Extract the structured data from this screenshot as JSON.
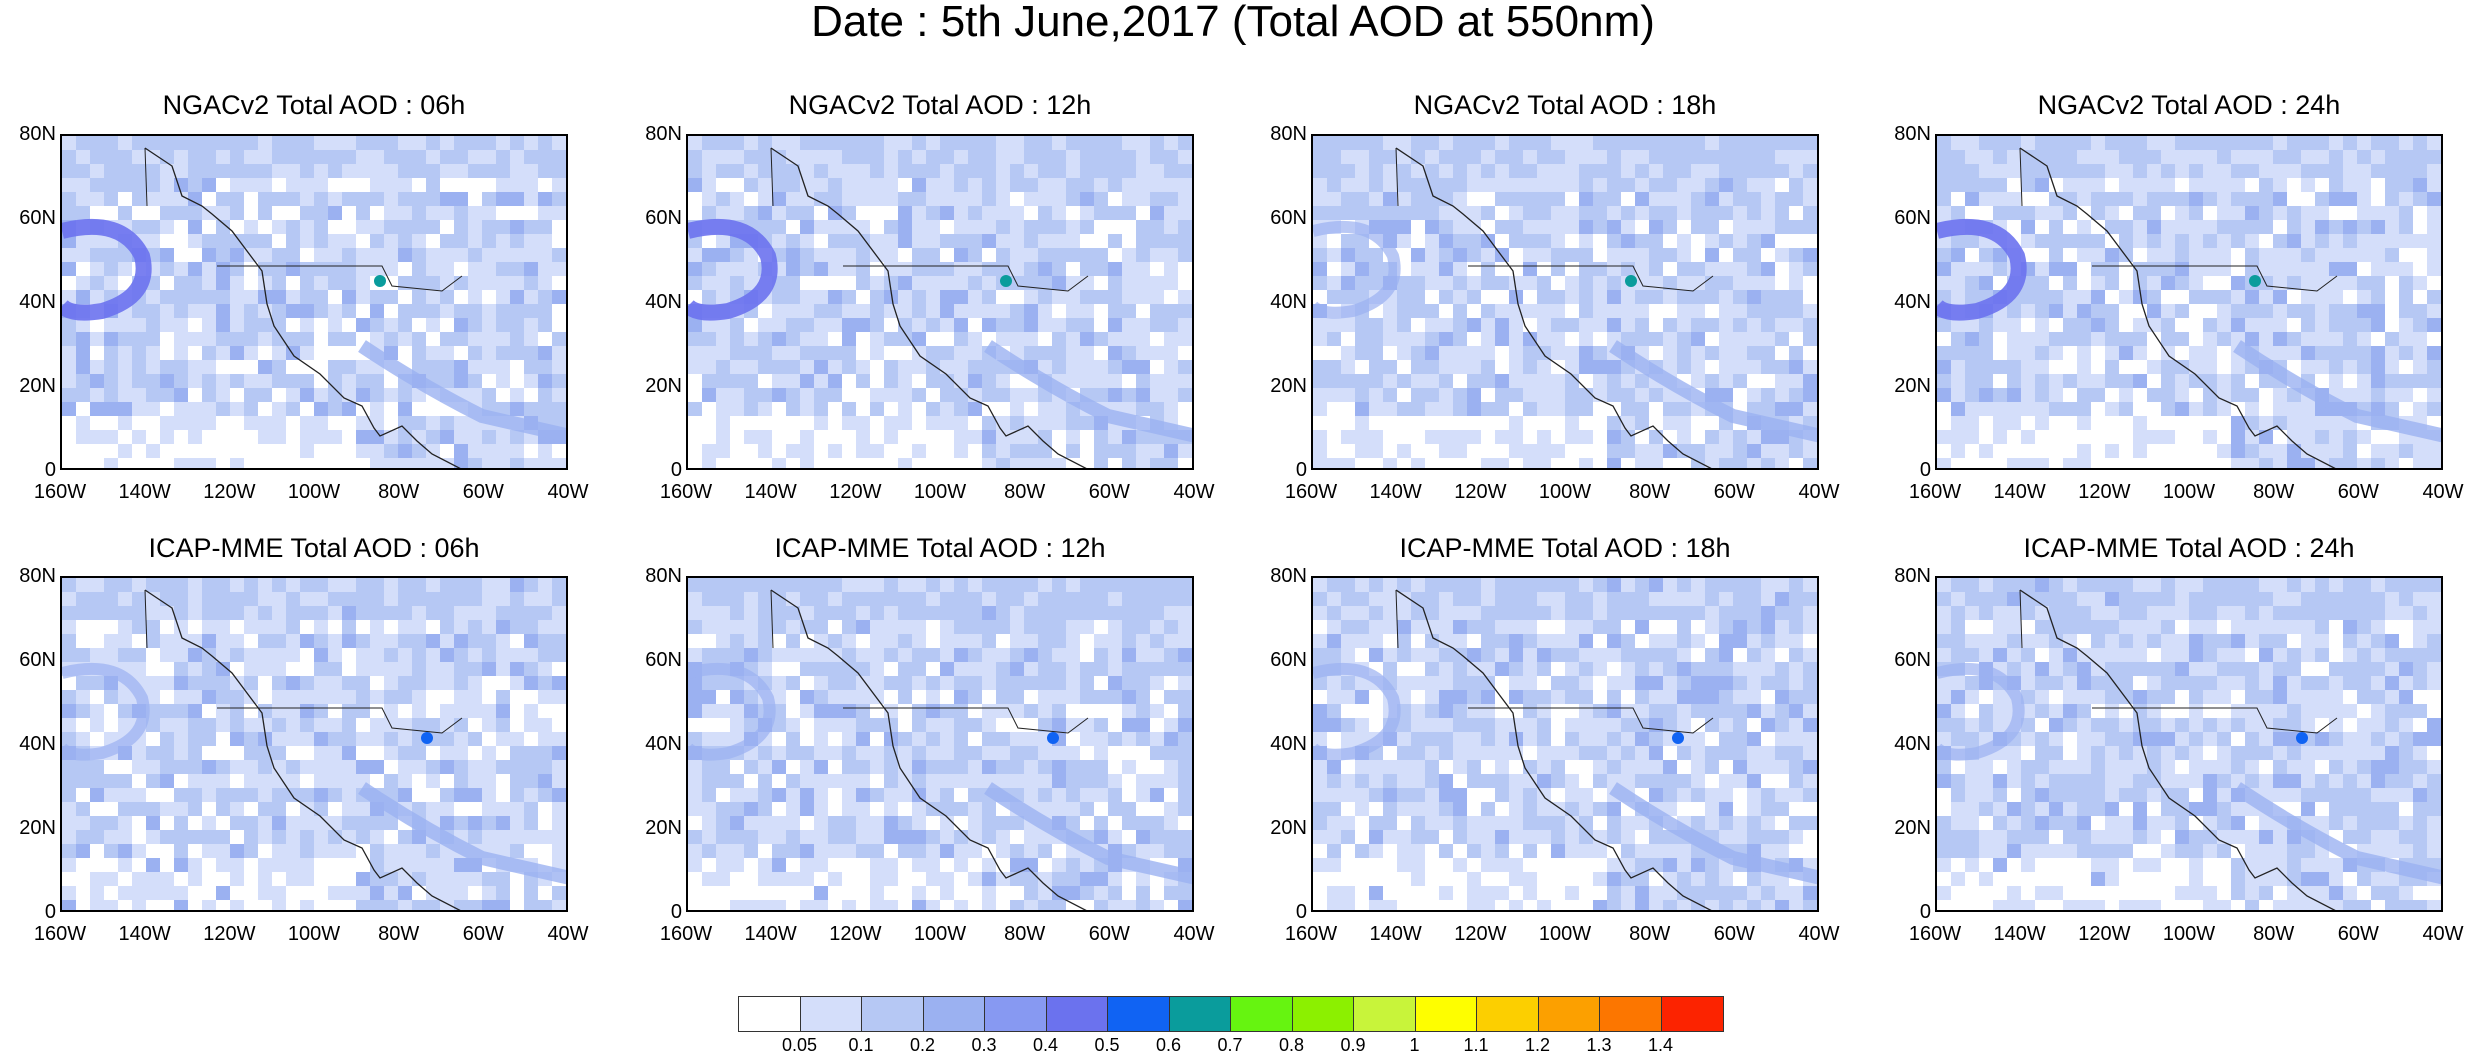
{
  "title": "Date : 5th June,2017 (Total AOD at 550nm)",
  "panels": [
    {
      "title": "NGACv2 Total AOD : 06h",
      "row": 0,
      "col": 0,
      "plume": "strong-west",
      "variant": 0
    },
    {
      "title": "NGACv2 Total AOD : 12h",
      "row": 0,
      "col": 1,
      "plume": "strong-west",
      "variant": 1
    },
    {
      "title": "NGACv2 Total AOD : 18h",
      "row": 0,
      "col": 2,
      "plume": "medium-west",
      "variant": 2
    },
    {
      "title": "NGACv2 Total AOD : 24h",
      "row": 0,
      "col": 3,
      "plume": "strong-west",
      "variant": 3
    },
    {
      "title": "ICAP-MME Total AOD : 06h",
      "row": 1,
      "col": 0,
      "plume": "weak",
      "variant": 4
    },
    {
      "title": "ICAP-MME Total AOD : 12h",
      "row": 1,
      "col": 1,
      "plume": "weak",
      "variant": 5
    },
    {
      "title": "ICAP-MME Total AOD : 18h",
      "row": 1,
      "col": 2,
      "plume": "weak",
      "variant": 6
    },
    {
      "title": "ICAP-MME Total AOD : 24h",
      "row": 1,
      "col": 3,
      "plume": "weak",
      "variant": 7
    }
  ],
  "lat_labels": [
    "80N",
    "60N",
    "40N",
    "20N",
    "0"
  ],
  "lon_labels": [
    "160W",
    "140W",
    "120W",
    "100W",
    "80W",
    "60W",
    "40W"
  ],
  "colorbar": {
    "colors": [
      "#ffffff",
      "#d4defa",
      "#b6c8f4",
      "#9bb1f1",
      "#8799f2",
      "#6b72ee",
      "#1063f3",
      "#0a9c9c",
      "#66f410",
      "#8cf000",
      "#c8f43a",
      "#fefe00",
      "#fccf00",
      "#fca000",
      "#fc7600",
      "#fc2300"
    ],
    "labels": [
      "0.05",
      "0.1",
      "0.2",
      "0.3",
      "0.4",
      "0.5",
      "0.6",
      "0.7",
      "0.8",
      "0.9",
      "1",
      "1.1",
      "1.2",
      "1.3",
      "1.4"
    ]
  }
}
